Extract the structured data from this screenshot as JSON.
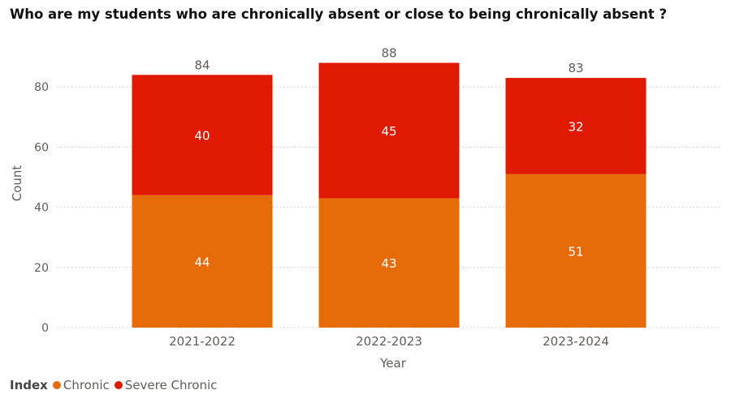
{
  "chart_data": {
    "type": "bar",
    "stacked": true,
    "title": "Who are my students who are chronically absent or close to being chronically absent ?",
    "xlabel": "Year",
    "ylabel": "Count",
    "ylim": [
      0,
      90
    ],
    "yticks": [
      0,
      20,
      40,
      60,
      80
    ],
    "grid": true,
    "categories": [
      "2021-2022",
      "2022-2023",
      "2023-2024"
    ],
    "series": [
      {
        "name": "Chronic",
        "values": [
          44,
          43,
          51
        ],
        "color": "#E66C0A"
      },
      {
        "name": "Severe Chronic",
        "values": [
          40,
          45,
          32
        ],
        "color": "#E01A00"
      }
    ],
    "totals": [
      84,
      88,
      83
    ],
    "legend": {
      "title": "Index",
      "placement": "bottom-left"
    }
  }
}
